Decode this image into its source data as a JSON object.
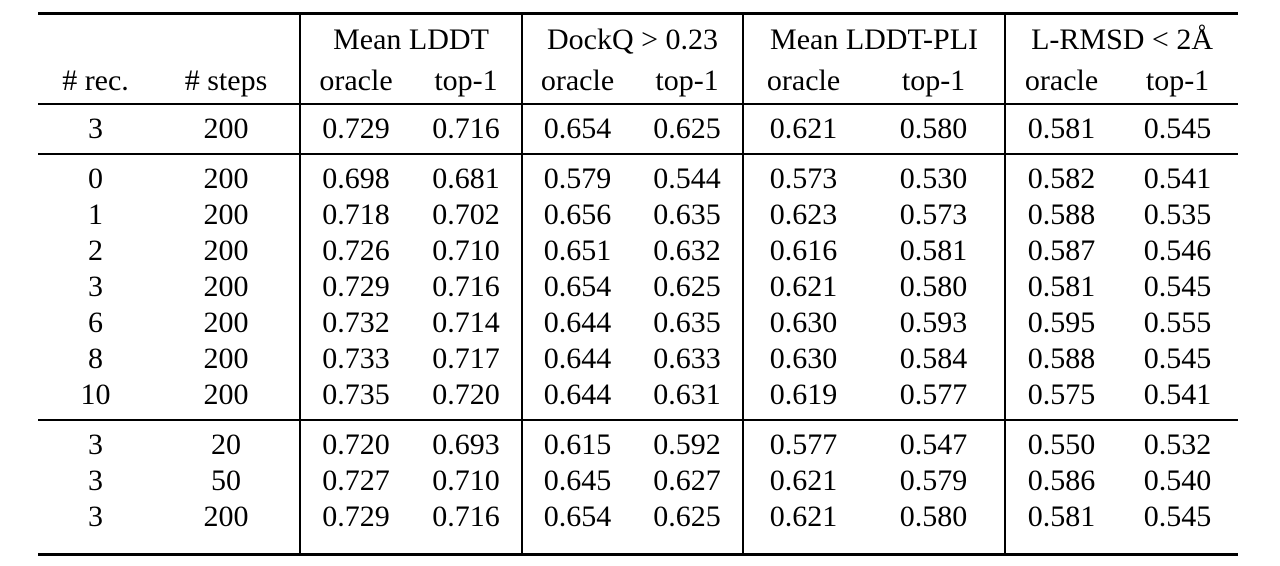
{
  "table": {
    "column_groups": [
      {
        "label": "",
        "colspan": 2
      },
      {
        "label": "Mean LDDT",
        "colspan": 2
      },
      {
        "label": "DockQ > 0.23",
        "colspan": 2
      },
      {
        "label": "Mean LDDT-PLI",
        "colspan": 2
      },
      {
        "label": "L-RMSD < 2Å",
        "colspan": 2
      }
    ],
    "sub_headers": [
      "# rec.",
      "# steps",
      "oracle",
      "top-1",
      "oracle",
      "top-1",
      "oracle",
      "top-1",
      "oracle",
      "top-1"
    ],
    "sections": [
      {
        "rows": [
          [
            "3",
            "200",
            "0.729",
            "0.716",
            "0.654",
            "0.625",
            "0.621",
            "0.580",
            "0.581",
            "0.545"
          ]
        ]
      },
      {
        "rows": [
          [
            "0",
            "200",
            "0.698",
            "0.681",
            "0.579",
            "0.544",
            "0.573",
            "0.530",
            "0.582",
            "0.541"
          ],
          [
            "1",
            "200",
            "0.718",
            "0.702",
            "0.656",
            "0.635",
            "0.623",
            "0.573",
            "0.588",
            "0.535"
          ],
          [
            "2",
            "200",
            "0.726",
            "0.710",
            "0.651",
            "0.632",
            "0.616",
            "0.581",
            "0.587",
            "0.546"
          ],
          [
            "3",
            "200",
            "0.729",
            "0.716",
            "0.654",
            "0.625",
            "0.621",
            "0.580",
            "0.581",
            "0.545"
          ],
          [
            "6",
            "200",
            "0.732",
            "0.714",
            "0.644",
            "0.635",
            "0.630",
            "0.593",
            "0.595",
            "0.555"
          ],
          [
            "8",
            "200",
            "0.733",
            "0.717",
            "0.644",
            "0.633",
            "0.630",
            "0.584",
            "0.588",
            "0.545"
          ],
          [
            "10",
            "200",
            "0.735",
            "0.720",
            "0.644",
            "0.631",
            "0.619",
            "0.577",
            "0.575",
            "0.541"
          ]
        ]
      },
      {
        "rows": [
          [
            "3",
            "20",
            "0.720",
            "0.693",
            "0.615",
            "0.592",
            "0.577",
            "0.547",
            "0.550",
            "0.532"
          ],
          [
            "3",
            "50",
            "0.727",
            "0.710",
            "0.645",
            "0.627",
            "0.621",
            "0.579",
            "0.586",
            "0.540"
          ],
          [
            "3",
            "200",
            "0.729",
            "0.716",
            "0.654",
            "0.625",
            "0.621",
            "0.580",
            "0.581",
            "0.545"
          ]
        ]
      }
    ]
  },
  "colors": {
    "text": "#000000",
    "background": "#ffffff",
    "rule": "#000000"
  }
}
